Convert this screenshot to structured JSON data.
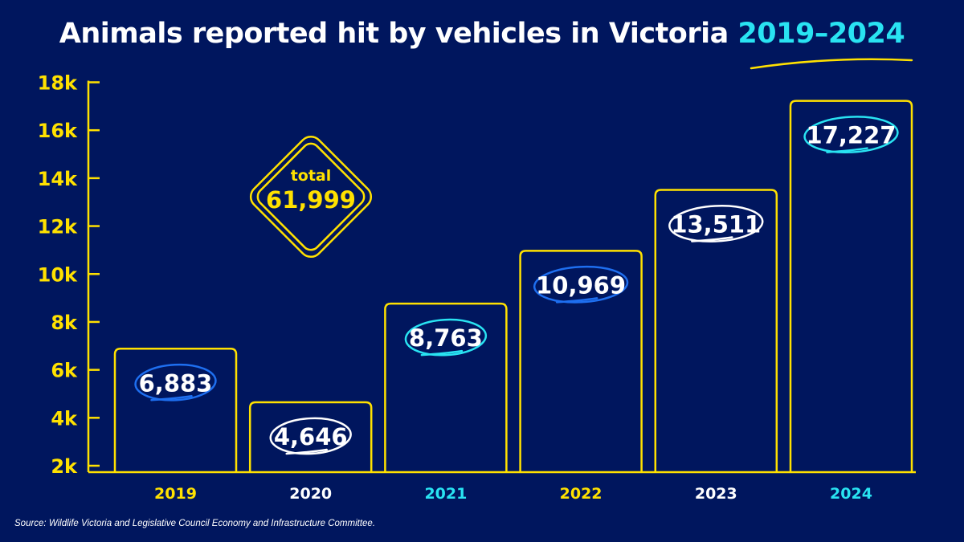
{
  "colors": {
    "background": "#00165e",
    "yellow": "#ffe100",
    "cyan": "#29e3f2",
    "blue": "#1e6ff0",
    "white": "#ffffff"
  },
  "title": {
    "main": "Animals reported hit by vehicles in Victoria ",
    "highlight": "2019–2024"
  },
  "total_badge": {
    "label": "total",
    "value": "61,999"
  },
  "source": "Source: Wildlife Victoria and Legislative Council Economy and Infrastructure Committee.",
  "chart_data": {
    "type": "bar",
    "title": "Animals reported hit by vehicles in Victoria 2019–2024",
    "xlabel": "",
    "ylabel": "",
    "categories": [
      "2019",
      "2020",
      "2021",
      "2022",
      "2023",
      "2024"
    ],
    "values": [
      6883,
      4646,
      8763,
      10969,
      13511,
      17227
    ],
    "data_labels": [
      "6,883",
      "4,646",
      "8,763",
      "10,969",
      "13,511",
      "17,227"
    ],
    "label_ring_colors": [
      "#1e6ff0",
      "#ffffff",
      "#29e3f2",
      "#1e6ff0",
      "#ffffff",
      "#29e3f2"
    ],
    "category_label_colors": [
      "#ffe100",
      "#ffffff",
      "#29e3f2",
      "#ffe100",
      "#ffffff",
      "#29e3f2"
    ],
    "yticks": [
      "2k",
      "4k",
      "6k",
      "8k",
      "10k",
      "12k",
      "14k",
      "16k",
      "18k"
    ],
    "ytick_values": [
      2000,
      4000,
      6000,
      8000,
      10000,
      12000,
      14000,
      16000,
      18000
    ],
    "ylim": [
      2000,
      18000
    ],
    "grid": false,
    "legend": "none"
  }
}
